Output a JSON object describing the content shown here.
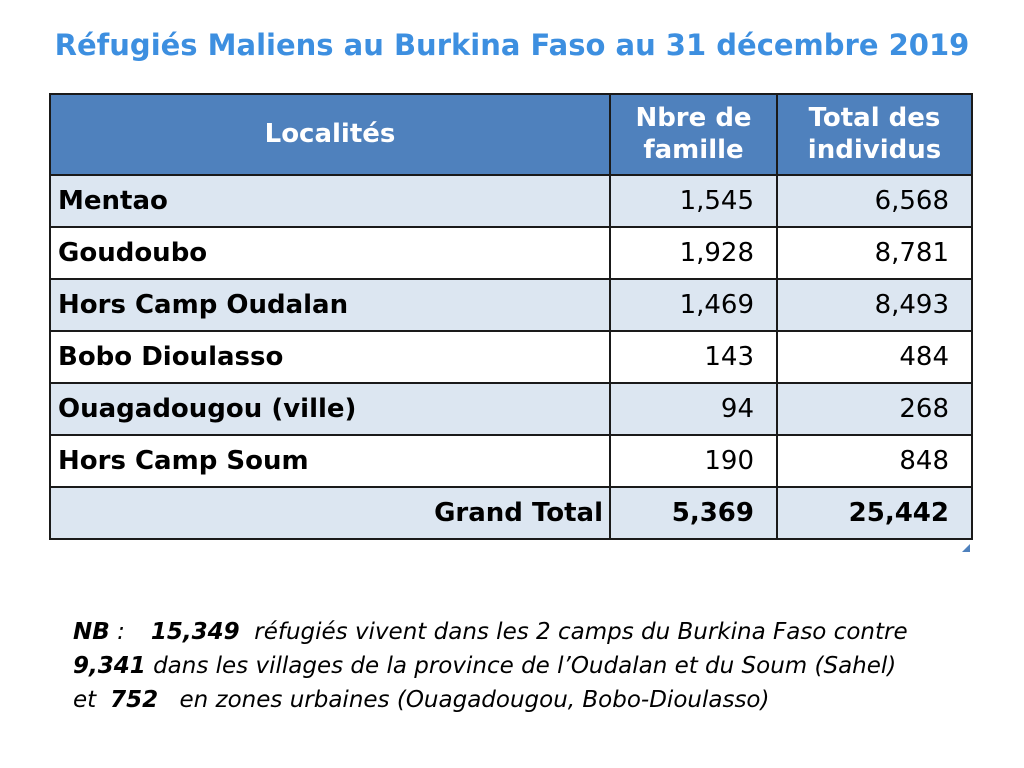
{
  "title": "Réfugiés Maliens au Burkina Faso au  31 décembre 2019",
  "table": {
    "headers": {
      "location": "Localités",
      "families": "Nbre de famille",
      "individuals": "Total des individus"
    },
    "rows": [
      {
        "location": "Mentao",
        "families": "1,545",
        "individuals": "6,568"
      },
      {
        "location": "Goudoubo",
        "families": "1,928",
        "individuals": "8,781"
      },
      {
        "location": "Hors Camp Oudalan",
        "families": "1,469",
        "individuals": "8,493"
      },
      {
        "location": "Bobo Dioulasso",
        "families": "143",
        "individuals": "484"
      },
      {
        "location": "Ouagadougou (ville)",
        "families": "94",
        "individuals": "268"
      },
      {
        "location": "Hors Camp Soum",
        "families": "190",
        "individuals": "848"
      }
    ],
    "total": {
      "label": "Grand Total",
      "families": "5,369",
      "individuals": "25,442"
    }
  },
  "note": {
    "label": "NB",
    "colon": " :",
    "camps_count": "15,349",
    "text1": "réfugiés vivent dans les 2 camps du Burkina Faso contre",
    "villages_count": "9,341",
    "text2": "dans les villages de la province de l’Oudalan et du Soum (Sahel) et",
    "urban_count": "752",
    "text3": "en zones urbaines (Ouagadougou, Bobo-Dioulasso)"
  },
  "colors": {
    "title": "#3d8fe0",
    "header_bg": "#4f81bd",
    "band_bg": "#dce6f1"
  }
}
